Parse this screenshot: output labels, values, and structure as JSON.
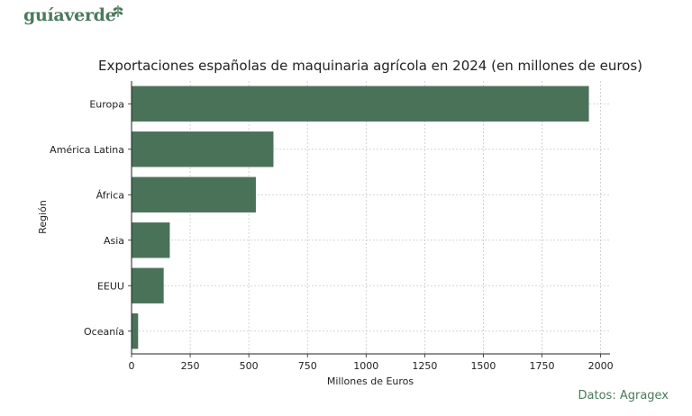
{
  "brand": {
    "name": "guíaverde",
    "color": "#4a7a5c"
  },
  "source_note": "Datos: Agragex",
  "chart_data": {
    "type": "bar",
    "orientation": "horizontal",
    "title": "Exportaciones españolas de maquinaria agrícola en 2024 (en millones de euros)",
    "xlabel": "Millones de Euros",
    "ylabel": "Región",
    "categories": [
      "Europa",
      "América Latina",
      "África",
      "Asia",
      "EEUU",
      "Oceanía"
    ],
    "values": [
      1950,
      605,
      530,
      163,
      137,
      28
    ],
    "xlim": [
      0,
      2040
    ],
    "xticks": [
      0,
      250,
      500,
      750,
      1000,
      1250,
      1500,
      1750,
      2000
    ],
    "grid": true,
    "bar_color": "#4a7259"
  }
}
